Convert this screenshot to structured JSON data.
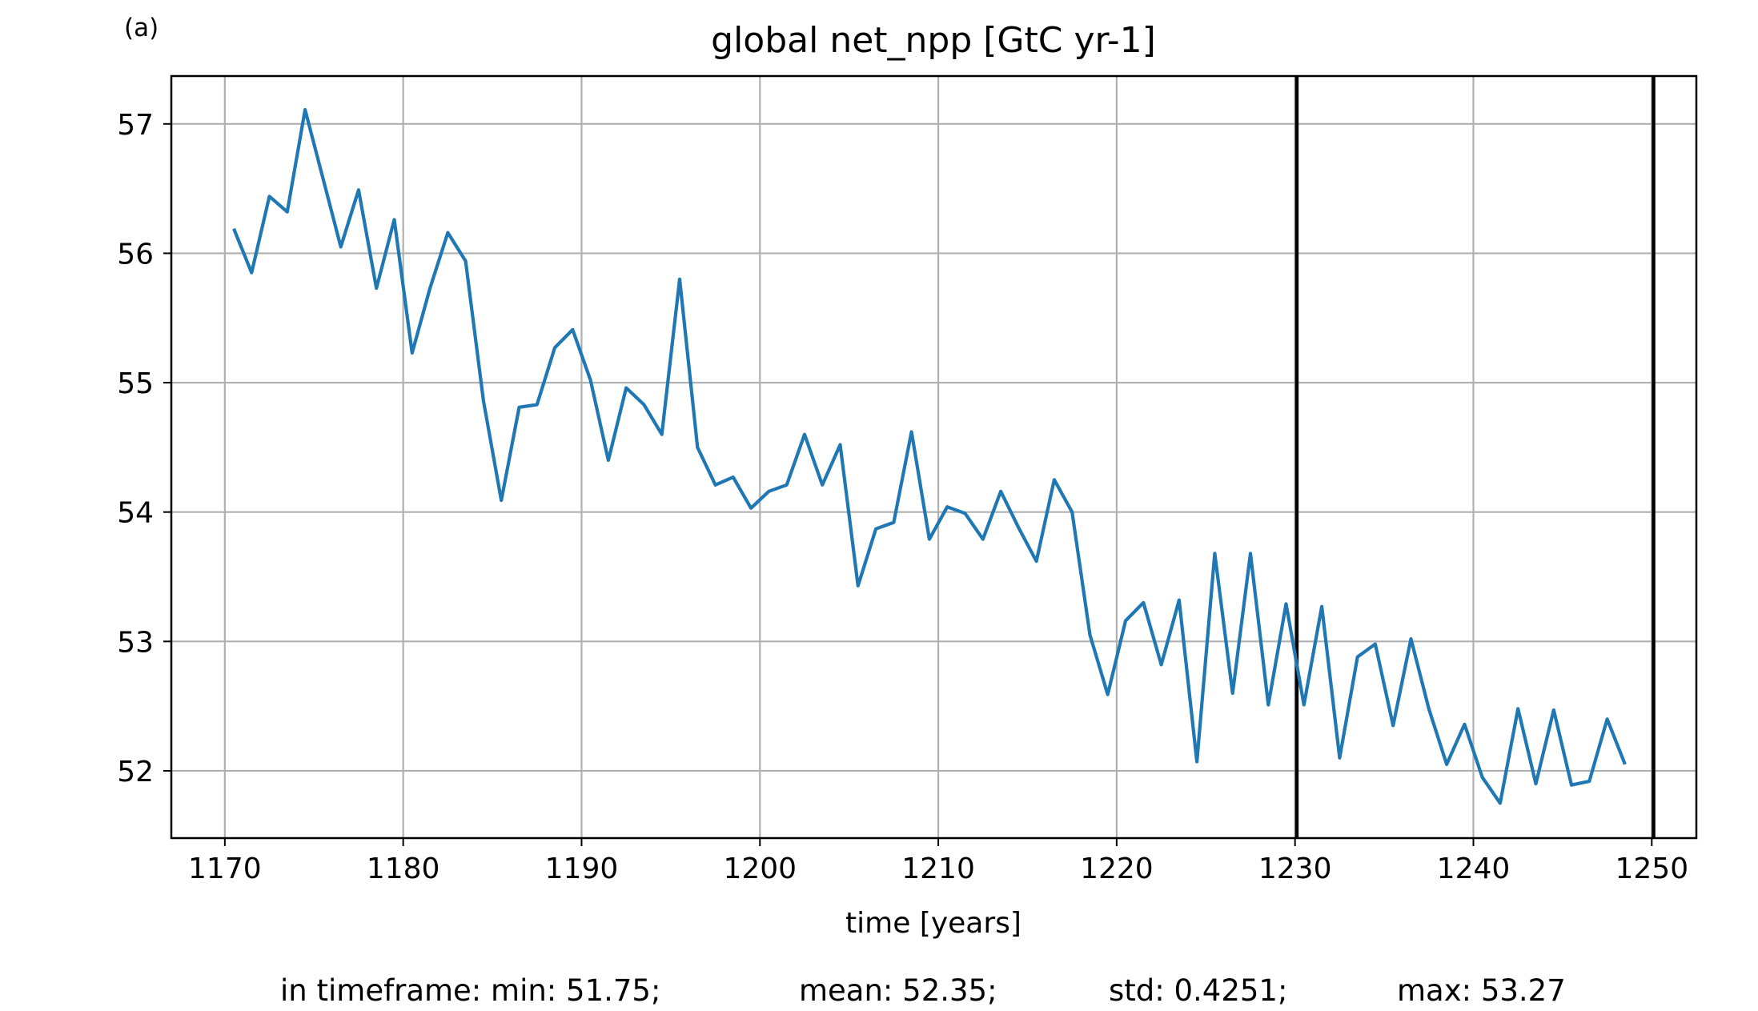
{
  "panel_label": "(a)",
  "chart_data": {
    "type": "line",
    "title": "global net_npp [GtC yr-1]",
    "xlabel": "time [years]",
    "ylabel": "",
    "xlim": [
      1167,
      1252.5
    ],
    "ylim": [
      51.48,
      57.37
    ],
    "xticks": [
      1170,
      1180,
      1190,
      1200,
      1210,
      1220,
      1230,
      1240,
      1250
    ],
    "yticks": [
      52,
      53,
      54,
      55,
      56,
      57
    ],
    "grid": true,
    "series": [
      {
        "color": "#1f77b4",
        "x": [
          1170.5,
          1171.5,
          1172.5,
          1173.5,
          1174.5,
          1175.5,
          1176.5,
          1177.5,
          1178.5,
          1179.5,
          1180.5,
          1181.5,
          1182.5,
          1183.5,
          1184.5,
          1185.5,
          1186.5,
          1187.5,
          1188.5,
          1189.5,
          1190.5,
          1191.5,
          1192.5,
          1193.5,
          1194.5,
          1195.5,
          1196.5,
          1197.5,
          1198.5,
          1199.5,
          1200.5,
          1201.5,
          1202.5,
          1203.5,
          1204.5,
          1205.5,
          1206.5,
          1207.5,
          1208.5,
          1209.5,
          1210.5,
          1211.5,
          1212.5,
          1213.5,
          1214.5,
          1215.5,
          1216.5,
          1217.5,
          1218.5,
          1219.5,
          1220.5,
          1221.5,
          1222.5,
          1223.5,
          1224.5,
          1225.5,
          1226.5,
          1227.5,
          1228.5,
          1229.5,
          1230.5,
          1231.5,
          1232.5,
          1233.5,
          1234.5,
          1235.5,
          1236.5,
          1237.5,
          1238.5,
          1239.5,
          1240.5,
          1241.5,
          1242.5,
          1243.5,
          1244.5,
          1245.5,
          1246.5,
          1247.5,
          1248.5
        ],
        "y": [
          56.19,
          55.85,
          56.44,
          56.32,
          57.11,
          56.58,
          56.05,
          56.49,
          55.73,
          56.26,
          55.23,
          55.73,
          56.16,
          55.94,
          54.86,
          54.09,
          54.81,
          54.83,
          55.27,
          55.41,
          55.02,
          54.4,
          54.96,
          54.83,
          54.6,
          55.8,
          54.5,
          54.21,
          54.27,
          54.03,
          54.16,
          54.21,
          54.6,
          54.21,
          54.52,
          53.43,
          53.87,
          53.92,
          54.62,
          53.79,
          54.04,
          53.99,
          53.79,
          54.16,
          53.88,
          53.62,
          54.25,
          54.0,
          53.05,
          52.59,
          53.16,
          53.3,
          52.82,
          53.32,
          52.07,
          53.68,
          52.6,
          53.68,
          52.51,
          53.29,
          52.51,
          53.27,
          52.1,
          52.88,
          52.98,
          52.35,
          53.02,
          52.48,
          52.05,
          52.36,
          51.95,
          51.75,
          52.48,
          51.9,
          52.47,
          51.89,
          51.92,
          52.4,
          52.05
        ]
      }
    ],
    "vlines": {
      "x": [
        1230.1,
        1250.1
      ],
      "color": "#000000"
    },
    "stats_text": {
      "min": "in timeframe: min: 51.75;",
      "mean": "mean: 52.35;",
      "std": "std: 0.4251;",
      "max": "max: 53.27"
    }
  }
}
